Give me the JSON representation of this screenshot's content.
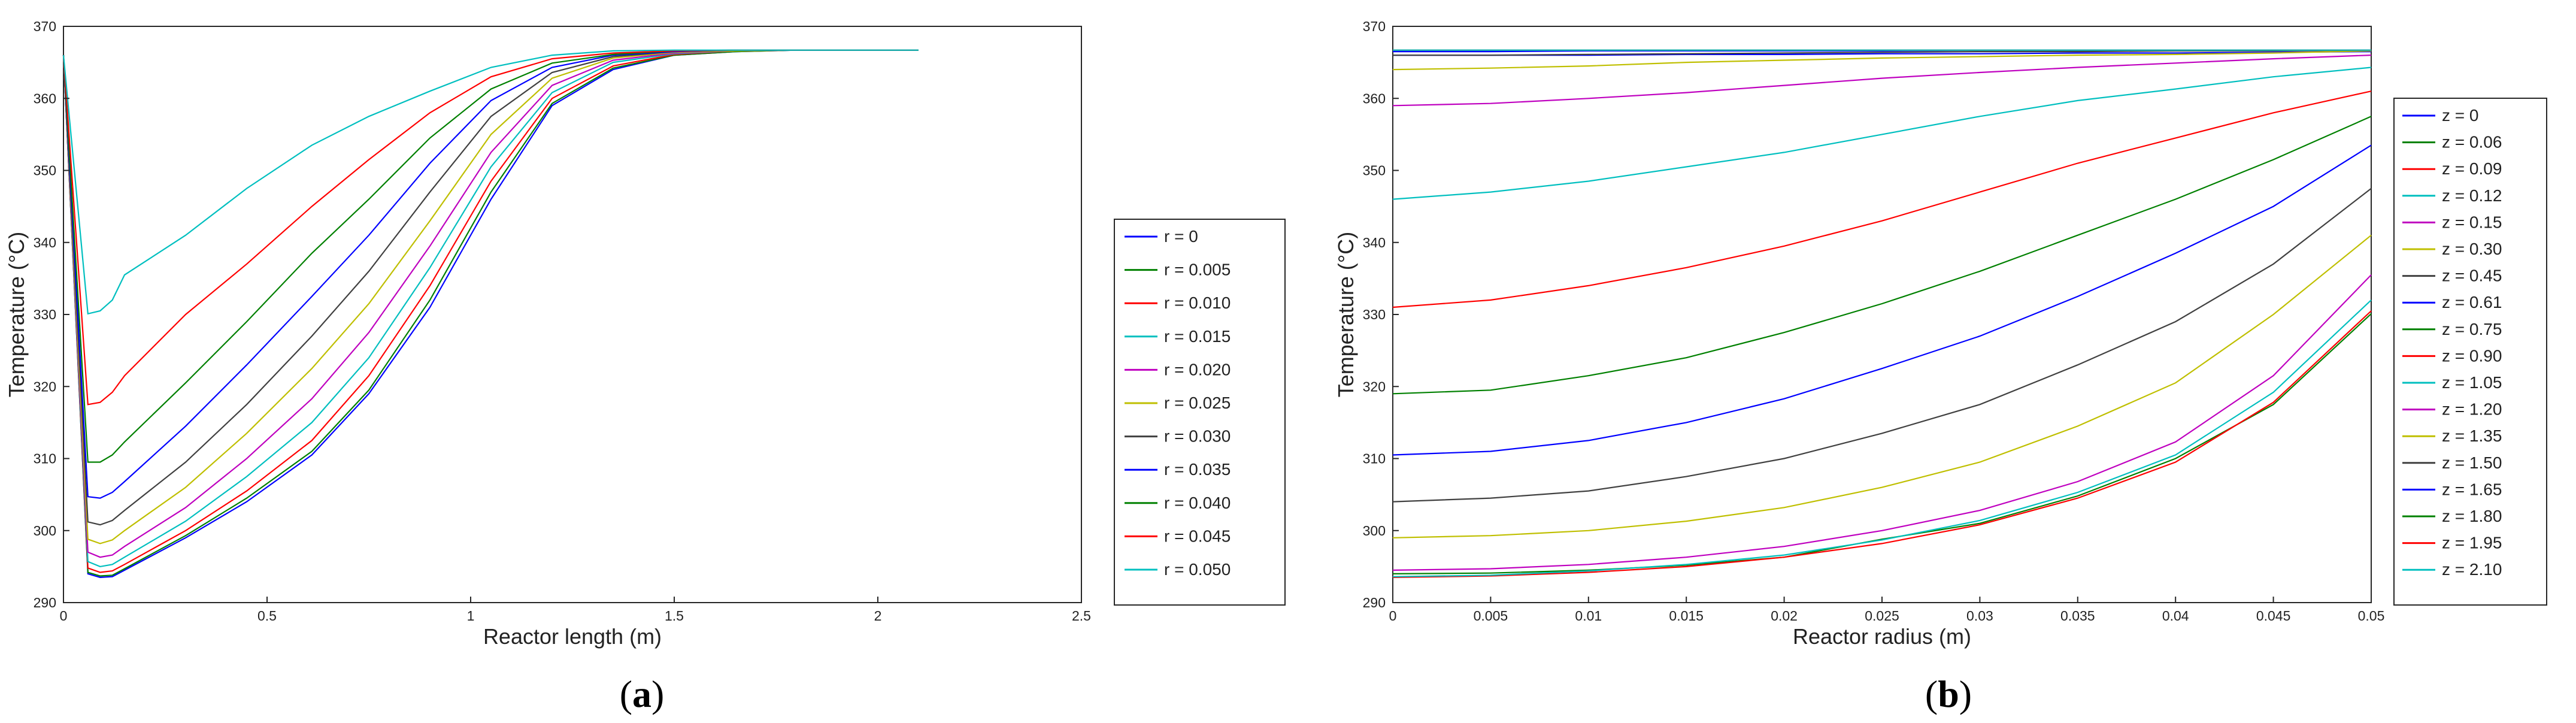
{
  "chart_data": [
    {
      "type": "line",
      "panel": "a",
      "xlabel": "Reactor length (m)",
      "ylabel": "Temperature (°C)",
      "xlim": [
        0,
        2.5
      ],
      "ylim": [
        290,
        370
      ],
      "xticks": [
        "0",
        "0.5",
        "1",
        "1.5",
        "2",
        "2.5"
      ],
      "yticks": [
        "290",
        "300",
        "310",
        "320",
        "330",
        "340",
        "350",
        "360",
        "370"
      ],
      "grid": false,
      "legend": "right",
      "x": [
        0,
        0.06,
        0.09,
        0.12,
        0.15,
        0.3,
        0.45,
        0.61,
        0.75,
        0.9,
        1.05,
        1.2,
        1.35,
        1.5,
        1.65,
        1.8,
        1.95,
        2.1
      ],
      "series": [
        {
          "name": "r = 0",
          "color": "#0000ff",
          "values": [
            366,
            294,
            293.5,
            293.6,
            294.5,
            299,
            304,
            310.5,
            319,
            331,
            346,
            359,
            364,
            366,
            366.5,
            366.7,
            366.7,
            366.7
          ]
        },
        {
          "name": "r = 0.005",
          "color": "#008000",
          "values": [
            366,
            294.2,
            293.7,
            293.8,
            294.7,
            299.3,
            304.5,
            311,
            319.5,
            332,
            347,
            359.3,
            364.2,
            366,
            366.5,
            366.7,
            366.7,
            366.7
          ]
        },
        {
          "name": "r = 0.010",
          "color": "#ff0000",
          "values": [
            366,
            294.8,
            294.2,
            294.4,
            295.3,
            300,
            305.5,
            312.5,
            321.5,
            334,
            348.5,
            360,
            364.5,
            366.1,
            366.6,
            366.7,
            366.7,
            366.7
          ]
        },
        {
          "name": "r = 0.015",
          "color": "#00bfbf",
          "values": [
            366,
            295.7,
            295,
            295.3,
            296.3,
            301.3,
            307.5,
            315,
            324,
            336.5,
            350.5,
            360.8,
            365,
            366.2,
            366.6,
            366.7,
            366.7,
            366.7
          ]
        },
        {
          "name": "r = 0.020",
          "color": "#bf00bf",
          "values": [
            366,
            297,
            296.3,
            296.6,
            297.8,
            303.2,
            310,
            318.3,
            327.5,
            339.5,
            352.5,
            361.8,
            365.3,
            366.3,
            366.6,
            366.7,
            366.7,
            366.7
          ]
        },
        {
          "name": "r = 0.025",
          "color": "#bfbf00",
          "values": [
            366,
            298.8,
            298.2,
            298.7,
            300,
            306,
            313.5,
            322.5,
            331.5,
            343,
            355,
            362.8,
            365.6,
            366.4,
            366.6,
            366.7,
            366.7,
            366.7
          ]
        },
        {
          "name": "r = 0.030",
          "color": "#404040",
          "values": [
            366,
            301.2,
            300.8,
            301.4,
            302.8,
            309.5,
            317.5,
            327,
            336,
            347,
            357.5,
            363.6,
            365.8,
            366.5,
            366.7,
            366.7,
            366.7,
            366.7
          ]
        },
        {
          "name": "r = 0.035",
          "color": "#0000ff",
          "values": [
            366,
            304.7,
            304.5,
            305.3,
            306.8,
            314.5,
            323,
            332.5,
            341,
            351,
            359.7,
            364.3,
            366,
            366.5,
            366.7,
            366.7,
            366.7,
            366.7
          ]
        },
        {
          "name": "r = 0.040",
          "color": "#008000",
          "values": [
            366,
            309.5,
            309.5,
            310.5,
            312.3,
            320.5,
            329,
            338.5,
            346,
            354.5,
            361.3,
            364.9,
            366.1,
            366.6,
            366.7,
            366.7,
            366.7,
            366.7
          ]
        },
        {
          "name": "r = 0.045",
          "color": "#ff0000",
          "values": [
            366,
            317.5,
            317.8,
            319.2,
            321.5,
            330,
            337,
            345,
            351.5,
            358,
            363,
            365.5,
            366.3,
            366.6,
            366.7,
            366.7,
            366.7,
            366.7
          ]
        },
        {
          "name": "r = 0.050",
          "color": "#00bfbf",
          "values": [
            366,
            330.1,
            330.5,
            332,
            335.5,
            341,
            347.5,
            353.5,
            357.5,
            361,
            364.3,
            366,
            366.6,
            366.7,
            366.7,
            366.7,
            366.7,
            366.7
          ]
        }
      ]
    },
    {
      "type": "line",
      "panel": "b",
      "xlabel": "Reactor radius (m)",
      "ylabel": "Temperature (°C)",
      "xlim": [
        0,
        0.05
      ],
      "ylim": [
        290,
        370
      ],
      "xticks": [
        "0",
        "0.005",
        "0.01",
        "0.015",
        "0.02",
        "0.025",
        "0.03",
        "0.035",
        "0.04",
        "0.045",
        "0.05"
      ],
      "yticks": [
        "290",
        "300",
        "310",
        "320",
        "330",
        "340",
        "350",
        "360",
        "370"
      ],
      "grid": false,
      "legend": "right",
      "x": [
        0,
        0.005,
        0.01,
        0.015,
        0.02,
        0.025,
        0.03,
        0.035,
        0.04,
        0.045,
        0.05
      ],
      "series": [
        {
          "name": "z = 0",
          "color": "#0000ff",
          "values": [
            366,
            366,
            366,
            366.1,
            366.1,
            366.2,
            366.2,
            366.3,
            366.3,
            366.4,
            366.5
          ]
        },
        {
          "name": "z = 0.06",
          "color": "#008000",
          "values": [
            294,
            294.1,
            294.5,
            295.2,
            296.3,
            298.8,
            301,
            304.8,
            310,
            317.5,
            330.1
          ]
        },
        {
          "name": "z = 0.09",
          "color": "#ff0000",
          "values": [
            293.5,
            293.7,
            294.2,
            295,
            296.3,
            298.2,
            300.8,
            304.5,
            309.5,
            317.8,
            330.5
          ]
        },
        {
          "name": "z = 0.12",
          "color": "#00bfbf",
          "values": [
            293.6,
            293.8,
            294.4,
            295.3,
            296.6,
            298.7,
            301.4,
            305.3,
            310.5,
            319.2,
            332
          ]
        },
        {
          "name": "z = 0.15",
          "color": "#bf00bf",
          "values": [
            294.5,
            294.7,
            295.3,
            296.3,
            297.8,
            300,
            302.8,
            306.8,
            312.3,
            321.5,
            335.5
          ]
        },
        {
          "name": "z = 0.30",
          "color": "#bfbf00",
          "values": [
            299,
            299.3,
            300,
            301.3,
            303.2,
            306,
            309.5,
            314.5,
            320.5,
            330,
            341
          ]
        },
        {
          "name": "z = 0.45",
          "color": "#404040",
          "values": [
            304,
            304.5,
            305.5,
            307.5,
            310,
            313.5,
            317.5,
            323,
            329,
            337,
            347.5
          ]
        },
        {
          "name": "z = 0.61",
          "color": "#0000ff",
          "values": [
            310.5,
            311,
            312.5,
            315,
            318.3,
            322.5,
            327,
            332.5,
            338.5,
            345,
            353.5
          ]
        },
        {
          "name": "z = 0.75",
          "color": "#008000",
          "values": [
            319,
            319.5,
            321.5,
            324,
            327.5,
            331.5,
            336,
            341,
            346,
            351.5,
            357.5
          ]
        },
        {
          "name": "z = 0.90",
          "color": "#ff0000",
          "values": [
            331,
            332,
            334,
            336.5,
            339.5,
            343,
            347,
            351,
            354.5,
            358,
            361
          ]
        },
        {
          "name": "z = 1.05",
          "color": "#00bfbf",
          "values": [
            346,
            347,
            348.5,
            350.5,
            352.5,
            355,
            357.5,
            359.7,
            361.3,
            363,
            364.3
          ]
        },
        {
          "name": "z = 1.20",
          "color": "#bf00bf",
          "values": [
            359,
            359.3,
            360,
            360.8,
            361.8,
            362.8,
            363.6,
            364.3,
            364.9,
            365.5,
            366
          ]
        },
        {
          "name": "z = 1.35",
          "color": "#bfbf00",
          "values": [
            364,
            364.2,
            364.5,
            365,
            365.3,
            365.6,
            365.8,
            366,
            366.1,
            366.3,
            366.6
          ]
        },
        {
          "name": "z = 1.50",
          "color": "#404040",
          "values": [
            366,
            366,
            366.1,
            366.2,
            366.3,
            366.4,
            366.5,
            366.5,
            366.6,
            366.6,
            366.7
          ]
        },
        {
          "name": "z = 1.65",
          "color": "#0000ff",
          "values": [
            366.5,
            366.5,
            366.6,
            366.6,
            366.6,
            366.6,
            366.7,
            366.7,
            366.7,
            366.7,
            366.7
          ]
        },
        {
          "name": "z = 1.80",
          "color": "#008000",
          "values": [
            366.7,
            366.7,
            366.7,
            366.7,
            366.7,
            366.7,
            366.7,
            366.7,
            366.7,
            366.7,
            366.7
          ]
        },
        {
          "name": "z = 1.95",
          "color": "#ff0000",
          "values": [
            366.7,
            366.7,
            366.7,
            366.7,
            366.7,
            366.7,
            366.7,
            366.7,
            366.7,
            366.7,
            366.7
          ]
        },
        {
          "name": "z = 2.10",
          "color": "#00bfbf",
          "values": [
            366.7,
            366.7,
            366.7,
            366.7,
            366.7,
            366.7,
            366.7,
            366.7,
            366.7,
            366.7,
            366.7
          ]
        }
      ]
    }
  ]
}
